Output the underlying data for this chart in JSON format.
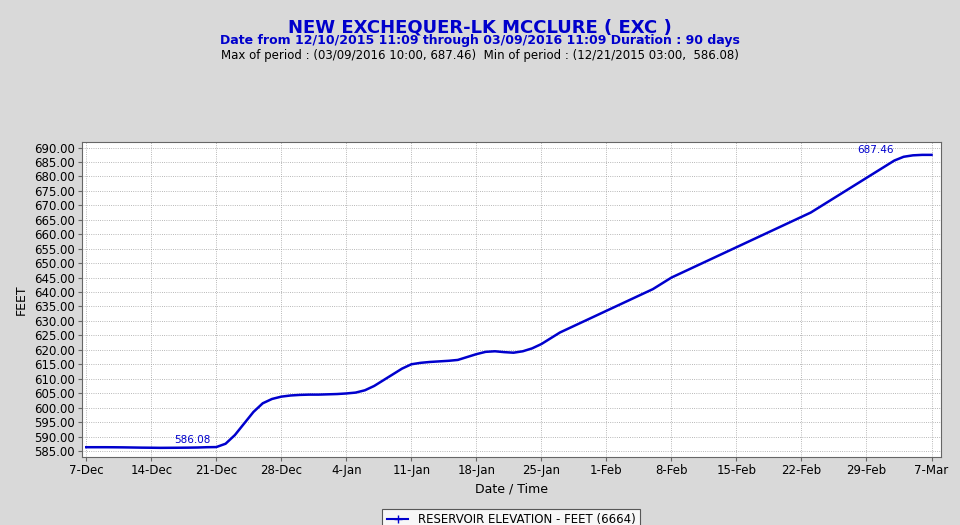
{
  "title": "NEW EXCHEQUER-LK MCCLURE ( EXC )",
  "subtitle": "Date from 12/10/2015 11:09 through 03/09/2016 11:09 Duration : 90 days",
  "subtitle2": "Max of period : (03/09/2016 10:00, 687.46)  Min of period : (12/21/2015 03:00,  586.08)",
  "xlabel": "Date / Time",
  "ylabel": "FEET",
  "legend_label": "RESERVOIR ELEVATION - FEET (6664)",
  "line_color": "#0000cd",
  "background_color": "#d9d9d9",
  "plot_bg_color": "#ffffff",
  "grid_color": "#a0a0a0",
  "ylim": [
    583.0,
    692.0
  ],
  "yticks": [
    585.0,
    590.0,
    595.0,
    600.0,
    605.0,
    610.0,
    615.0,
    620.0,
    625.0,
    630.0,
    635.0,
    640.0,
    645.0,
    650.0,
    655.0,
    660.0,
    665.0,
    670.0,
    675.0,
    680.0,
    685.0,
    690.0
  ],
  "x_tick_labels": [
    "7-Dec",
    "14-Dec",
    "21-Dec",
    "28-Dec",
    "4-Jan",
    "11-Jan",
    "18-Jan",
    "25-Jan",
    "1-Feb",
    "8-Feb",
    "15-Feb",
    "22-Feb",
    "29-Feb",
    "7-Mar"
  ],
  "x_tick_positions": [
    0,
    7,
    14,
    21,
    28,
    35,
    42,
    49,
    56,
    63,
    70,
    77,
    84,
    91
  ],
  "annotation_min": "586.08",
  "annotation_max": "687.46",
  "data_points": [
    [
      0,
      586.3
    ],
    [
      1,
      586.3
    ],
    [
      2,
      586.3
    ],
    [
      3,
      586.28
    ],
    [
      4,
      586.25
    ],
    [
      5,
      586.2
    ],
    [
      6,
      586.15
    ],
    [
      7,
      586.12
    ],
    [
      8,
      586.08
    ],
    [
      9,
      586.1
    ],
    [
      10,
      586.12
    ],
    [
      11,
      586.15
    ],
    [
      12,
      586.2
    ],
    [
      13,
      586.3
    ],
    [
      14,
      586.35
    ],
    [
      15,
      587.5
    ],
    [
      16,
      590.5
    ],
    [
      17,
      594.5
    ],
    [
      18,
      598.5
    ],
    [
      19,
      601.5
    ],
    [
      20,
      603.0
    ],
    [
      21,
      603.8
    ],
    [
      22,
      604.2
    ],
    [
      23,
      604.4
    ],
    [
      24,
      604.5
    ],
    [
      25,
      604.5
    ],
    [
      26,
      604.6
    ],
    [
      27,
      604.7
    ],
    [
      28,
      604.9
    ],
    [
      29,
      605.2
    ],
    [
      30,
      606.0
    ],
    [
      31,
      607.5
    ],
    [
      32,
      609.5
    ],
    [
      33,
      611.5
    ],
    [
      34,
      613.5
    ],
    [
      35,
      615.0
    ],
    [
      36,
      615.5
    ],
    [
      37,
      615.8
    ],
    [
      38,
      616.0
    ],
    [
      39,
      616.2
    ],
    [
      40,
      616.5
    ],
    [
      41,
      617.5
    ],
    [
      42,
      618.5
    ],
    [
      43,
      619.3
    ],
    [
      44,
      619.5
    ],
    [
      45,
      619.2
    ],
    [
      46,
      619.0
    ],
    [
      47,
      619.5
    ],
    [
      48,
      620.5
    ],
    [
      49,
      622.0
    ],
    [
      50,
      624.0
    ],
    [
      51,
      626.0
    ],
    [
      52,
      627.5
    ],
    [
      53,
      629.0
    ],
    [
      54,
      630.5
    ],
    [
      55,
      632.0
    ],
    [
      56,
      633.5
    ],
    [
      57,
      635.0
    ],
    [
      58,
      636.5
    ],
    [
      59,
      638.0
    ],
    [
      60,
      639.5
    ],
    [
      61,
      641.0
    ],
    [
      62,
      643.0
    ],
    [
      63,
      645.0
    ],
    [
      64,
      646.5
    ],
    [
      65,
      648.0
    ],
    [
      66,
      649.5
    ],
    [
      67,
      651.0
    ],
    [
      68,
      652.5
    ],
    [
      69,
      654.0
    ],
    [
      70,
      655.5
    ],
    [
      71,
      657.0
    ],
    [
      72,
      658.5
    ],
    [
      73,
      660.0
    ],
    [
      74,
      661.5
    ],
    [
      75,
      663.0
    ],
    [
      76,
      664.5
    ],
    [
      77,
      666.0
    ],
    [
      78,
      667.5
    ],
    [
      79,
      669.5
    ],
    [
      80,
      671.5
    ],
    [
      81,
      673.5
    ],
    [
      82,
      675.5
    ],
    [
      83,
      677.5
    ],
    [
      84,
      679.5
    ],
    [
      85,
      681.5
    ],
    [
      86,
      683.5
    ],
    [
      87,
      685.5
    ],
    [
      88,
      686.8
    ],
    [
      89,
      687.3
    ],
    [
      90,
      687.46
    ],
    [
      91,
      687.46
    ]
  ],
  "min_point_x": 8,
  "min_point_y": 586.08,
  "max_point_x": 90,
  "max_point_y": 687.46,
  "title_fontsize": 13,
  "subtitle_fontsize": 9,
  "subtitle2_fontsize": 8.5,
  "axis_fontsize": 8.5,
  "ylabel_fontsize": 9,
  "xlabel_fontsize": 9
}
